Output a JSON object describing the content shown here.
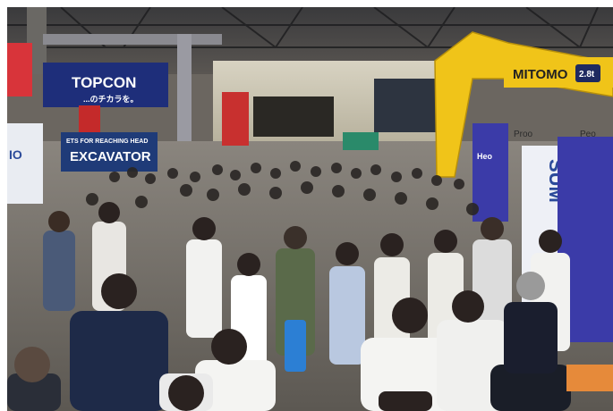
{
  "photo": {
    "scene": "trade-show exhibition hall crowd",
    "signs": {
      "topcon": "TOPCON",
      "topcon_sub": "...のチカラを。",
      "excavator_top": "ETS FOR REACHING HEAD",
      "excavator": "EXCAVATOR",
      "sumitomo_arm": "MITOMO",
      "sumitomo_badge": "2.8t",
      "sumitomo_banner": "SUM",
      "left_panel": "IO",
      "center_small": "Heo",
      "right_top": "Proo",
      "right_top_2": "Peo"
    },
    "colors": {
      "topcon_blue": "#1e2e7a",
      "sumitomo_blue": "#3b3ba8",
      "excavator_yellow": "#f0c419",
      "ceiling": "#2b2b2e",
      "hall_wall": "#cfcab8"
    }
  }
}
